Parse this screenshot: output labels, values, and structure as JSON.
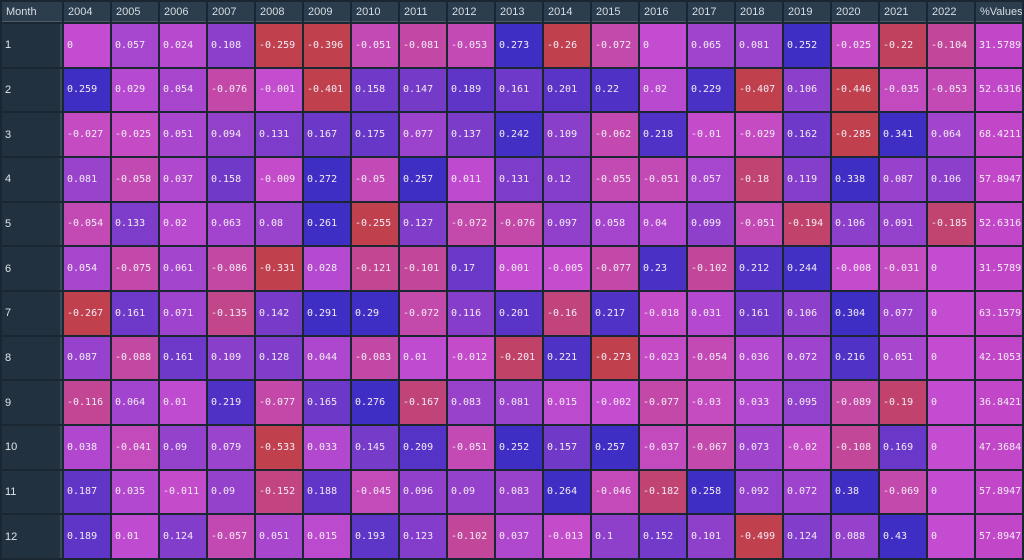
{
  "table": {
    "columns": [
      "Month",
      "2004",
      "2005",
      "2006",
      "2007",
      "2008",
      "2009",
      "2010",
      "2011",
      "2012",
      "2013",
      "2014",
      "2015",
      "2016",
      "2017",
      "2018",
      "2019",
      "2020",
      "2021",
      "2022",
      "%ValuesPos"
    ],
    "rows": [
      {
        "month": "1",
        "values": [
          "0",
          "0.057",
          "0.024",
          "0.108",
          "-0.259",
          "-0.396",
          "-0.051",
          "-0.081",
          "-0.053",
          "0.273",
          "-0.26",
          "-0.072",
          "0",
          "0.065",
          "0.081",
          "0.252",
          "-0.025",
          "-0.22",
          "-0.104"
        ],
        "pct": "31.5789"
      },
      {
        "month": "2",
        "values": [
          "0.259",
          "0.029",
          "0.054",
          "-0.076",
          "-0.001",
          "-0.401",
          "0.158",
          "0.147",
          "0.189",
          "0.161",
          "0.201",
          "0.22",
          "0.02",
          "0.229",
          "-0.407",
          "0.106",
          "-0.446",
          "-0.035",
          "-0.053"
        ],
        "pct": "52.6316"
      },
      {
        "month": "3",
        "values": [
          "-0.027",
          "-0.025",
          "0.051",
          "0.094",
          "0.131",
          "0.167",
          "0.175",
          "0.077",
          "0.137",
          "0.242",
          "0.109",
          "-0.062",
          "0.218",
          "-0.01",
          "-0.029",
          "0.162",
          "-0.285",
          "0.341",
          "0.064"
        ],
        "pct": "68.4211"
      },
      {
        "month": "4",
        "values": [
          "0.081",
          "-0.058",
          "0.037",
          "0.158",
          "-0.009",
          "0.272",
          "-0.05",
          "0.257",
          "0.011",
          "0.131",
          "0.12",
          "-0.055",
          "-0.051",
          "0.057",
          "-0.18",
          "0.119",
          "0.338",
          "0.087",
          "0.106"
        ],
        "pct": "57.8947"
      },
      {
        "month": "5",
        "values": [
          "-0.054",
          "0.133",
          "0.02",
          "0.063",
          "0.08",
          "0.261",
          "-0.255",
          "0.127",
          "-0.072",
          "-0.076",
          "0.097",
          "0.058",
          "0.04",
          "0.099",
          "-0.051",
          "-0.194",
          "0.106",
          "0.091",
          "-0.185"
        ],
        "pct": "52.6316"
      },
      {
        "month": "6",
        "values": [
          "0.054",
          "-0.075",
          "0.061",
          "-0.086",
          "-0.331",
          "0.028",
          "-0.121",
          "-0.101",
          "0.17",
          "0.001",
          "-0.005",
          "-0.077",
          "0.23",
          "-0.102",
          "0.212",
          "0.244",
          "-0.008",
          "-0.031",
          "0"
        ],
        "pct": "31.5789"
      },
      {
        "month": "7",
        "values": [
          "-0.267",
          "0.161",
          "0.071",
          "-0.135",
          "0.142",
          "0.291",
          "0.29",
          "-0.072",
          "0.116",
          "0.201",
          "-0.16",
          "0.217",
          "-0.018",
          "0.031",
          "0.161",
          "0.106",
          "0.304",
          "0.077",
          "0"
        ],
        "pct": "63.1579"
      },
      {
        "month": "8",
        "values": [
          "0.087",
          "-0.088",
          "0.161",
          "0.109",
          "0.128",
          "0.044",
          "-0.083",
          "0.01",
          "-0.012",
          "-0.201",
          "0.221",
          "-0.273",
          "-0.023",
          "-0.054",
          "0.036",
          "0.072",
          "0.216",
          "0.051",
          "0"
        ],
        "pct": "42.1053"
      },
      {
        "month": "9",
        "values": [
          "-0.116",
          "0.064",
          "0.01",
          "0.219",
          "-0.077",
          "0.165",
          "0.276",
          "-0.167",
          "0.083",
          "0.081",
          "0.015",
          "-0.002",
          "-0.077",
          "-0.03",
          "0.033",
          "0.095",
          "-0.089",
          "-0.19",
          "0"
        ],
        "pct": "36.8421"
      },
      {
        "month": "10",
        "values": [
          "0.038",
          "-0.041",
          "0.09",
          "0.079",
          "-0.533",
          "0.033",
          "0.145",
          "0.209",
          "-0.051",
          "0.252",
          "0.157",
          "0.257",
          "-0.037",
          "-0.067",
          "0.073",
          "-0.02",
          "-0.108",
          "0.169",
          "0"
        ],
        "pct": "47.3684"
      },
      {
        "month": "11",
        "values": [
          "0.187",
          "0.035",
          "-0.011",
          "0.09",
          "-0.152",
          "0.188",
          "-0.045",
          "0.096",
          "0.09",
          "0.083",
          "0.264",
          "-0.046",
          "-0.182",
          "0.258",
          "0.092",
          "0.072",
          "0.38",
          "-0.069",
          "0"
        ],
        "pct": "57.8947"
      },
      {
        "month": "12",
        "values": [
          "0.189",
          "0.01",
          "0.124",
          "-0.057",
          "0.051",
          "0.015",
          "0.193",
          "0.123",
          "-0.102",
          "0.037",
          "-0.013",
          "0.1",
          "0.152",
          "0.101",
          "-0.499",
          "0.124",
          "0.088",
          "0.43",
          "0"
        ],
        "pct": "57.8947"
      }
    ]
  },
  "colors": {
    "negative": "#c0404e",
    "neutral": "#c44cd0",
    "positive": "#3f2ec4",
    "pct_cell": "#c247c8"
  }
}
